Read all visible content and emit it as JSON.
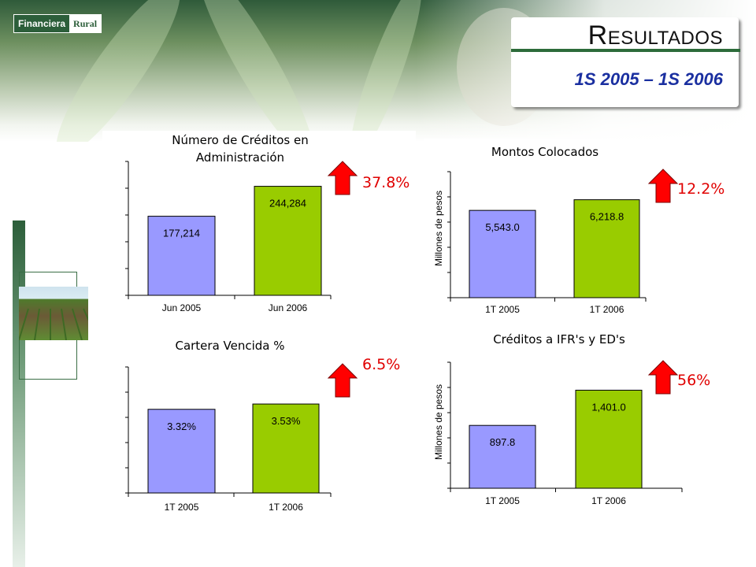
{
  "header": {
    "logo_part1": "Financiera",
    "logo_part2": "Rural",
    "title_cap": "R",
    "title_rest": "ESULTADOS",
    "subtitle": "1S 2005 – 1S 2006"
  },
  "colors": {
    "bar_before": "#9999ff",
    "bar_after": "#99cc00",
    "arrow": "#ff0000",
    "change_text": "#e00000"
  },
  "chart_data": [
    {
      "type": "bar",
      "title": "Número de Créditos en",
      "title2": "Administración",
      "ylabel": "",
      "categories": [
        "Jun 2005",
        "Jun 2006"
      ],
      "values": [
        177214,
        244284
      ],
      "value_labels": [
        "177,214",
        "244,284"
      ],
      "change": "37.8%",
      "change_icon": "arrow-up-icon",
      "ylim": [
        0,
        300000
      ]
    },
    {
      "type": "bar",
      "title": "Montos Colocados",
      "title2": "",
      "ylabel": "Millones de pesos",
      "categories": [
        "1T 2005",
        "1T 2006"
      ],
      "values": [
        5543.0,
        6218.8
      ],
      "value_labels": [
        "5,543.0",
        "6,218.8"
      ],
      "change": "12.2%",
      "change_icon": "arrow-up-icon",
      "ylim": [
        0,
        8000
      ]
    },
    {
      "type": "bar",
      "title": "Cartera Vencida %",
      "title2": "",
      "ylabel": "",
      "categories": [
        "1T 2005",
        "1T 2006"
      ],
      "values": [
        3.32,
        3.53
      ],
      "value_labels": [
        "3.32%",
        "3.53%"
      ],
      "change": "6.5%",
      "change_icon": "arrow-up-icon",
      "ylim": [
        0,
        5
      ]
    },
    {
      "type": "bar",
      "title": "Créditos a IFR's y ED's",
      "title2": "",
      "ylabel": "Millones de pesos",
      "categories": [
        "1T 2005",
        "1T 2006"
      ],
      "values": [
        897.8,
        1401.0
      ],
      "value_labels": [
        "897.8",
        "1,401.0"
      ],
      "change": "56%",
      "change_icon": "arrow-up-icon",
      "ylim": [
        0,
        1800
      ]
    }
  ]
}
